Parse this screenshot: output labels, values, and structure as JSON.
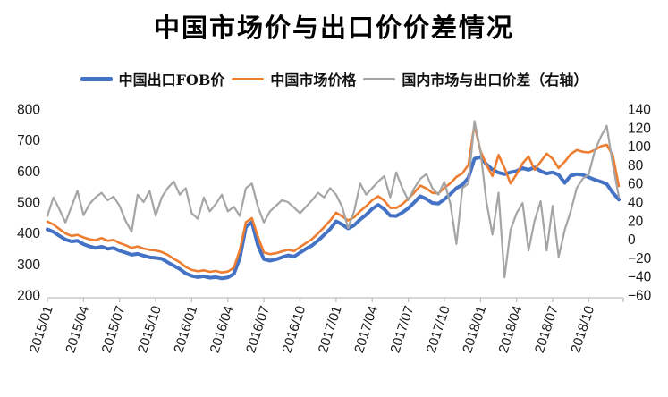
{
  "page": {
    "title": "中国市场价与出口价价差情况"
  },
  "legend": {
    "items": [
      {
        "label": "中国出口FOB价",
        "color": "#4472C4"
      },
      {
        "label": "中国市场价格",
        "color": "#ED7D31"
      },
      {
        "label": "国内市场与出口价差（右轴）",
        "color": "#A5A5A5"
      }
    ]
  },
  "chart_data": {
    "type": "line",
    "title": "中国市场价与出口价价差情况",
    "grid": false,
    "legend_position": "top",
    "axis_color": "#BFBFBF",
    "x_labels": [
      "2015/01",
      "2015/04",
      "2015/07",
      "2015/10",
      "2016/01",
      "2016/04",
      "2016/07",
      "2016/10",
      "2017/01",
      "2017/04",
      "2017/07",
      "2017/10",
      "2018/01",
      "2018/04",
      "2018/07",
      "2018/10"
    ],
    "x_tick_step_points": 6,
    "x_resolution": "biweekly, 2015/01 through 2018/12",
    "left_axis": {
      "ticks": [
        800,
        700,
        600,
        500,
        400,
        300,
        200
      ],
      "min": 200,
      "max": 800
    },
    "right_axis": {
      "ticks": [
        140,
        120,
        100,
        80,
        60,
        40,
        20,
        0,
        -20,
        -40,
        -60
      ],
      "min": -60,
      "max": 140
    },
    "series": [
      {
        "name": "中国出口FOB价",
        "axis": "left",
        "color": "#4472C4",
        "stroke_width": 4,
        "values": [
          412,
          404,
          391,
          379,
          373,
          375,
          364,
          357,
          352,
          356,
          349,
          352,
          343,
          337,
          330,
          333,
          327,
          322,
          320,
          317,
          306,
          295,
          284,
          270,
          262,
          258,
          261,
          256,
          258,
          254,
          257,
          268,
          320,
          420,
          435,
          360,
          316,
          311,
          315,
          322,
          328,
          324,
          337,
          349,
          360,
          376,
          394,
          413,
          438,
          428,
          415,
          425,
          444,
          459,
          478,
          491,
          477,
          456,
          455,
          466,
          480,
          499,
          519,
          510,
          497,
          495,
          509,
          526,
          545,
          556,
          578,
          640,
          645,
          622,
          605,
          595,
          590,
          596,
          600,
          610,
          604,
          612,
          600,
          592,
          596,
          588,
          562,
          585,
          590,
          588,
          580,
          572,
          566,
          558,
          530,
          508
        ]
      },
      {
        "name": "中国市场价格",
        "axis": "left",
        "color": "#ED7D31",
        "stroke_width": 2.6,
        "values": [
          437,
          428,
          413,
          399,
          391,
          394,
          386,
          380,
          377,
          384,
          375,
          378,
          368,
          361,
          352,
          357,
          350,
          346,
          344,
          339,
          330,
          317,
          306,
          291,
          281,
          277,
          280,
          275,
          278,
          273,
          276,
          288,
          345,
          435,
          448,
          388,
          338,
          332,
          335,
          341,
          346,
          342,
          355,
          368,
          381,
          399,
          419,
          440,
          466,
          454,
          441,
          451,
          471,
          487,
          506,
          519,
          505,
          481,
          481,
          493,
          511,
          531,
          553,
          544,
          530,
          528,
          546,
          561,
          581,
          593,
          620,
          750,
          665,
          620,
          584,
          652,
          610,
          560,
          590,
          625,
          647,
          604,
          630,
          656,
          640,
          610,
          630,
          655,
          668,
          662,
          660,
          668,
          680,
          685,
          650,
          552
        ]
      },
      {
        "name": "国内市场与出口价差（右轴）",
        "axis": "right",
        "color": "#A5A5A5",
        "stroke_width": 2.2,
        "values": [
          25,
          45,
          32,
          18,
          35,
          52,
          26,
          38,
          45,
          50,
          42,
          46,
          36,
          20,
          8,
          48,
          40,
          52,
          25,
          45,
          55,
          62,
          48,
          55,
          28,
          22,
          45,
          30,
          38,
          48,
          30,
          35,
          25,
          55,
          60,
          35,
          18,
          30,
          36,
          42,
          40,
          34,
          28,
          35,
          42,
          50,
          45,
          55,
          48,
          35,
          12,
          30,
          60,
          48,
          55,
          62,
          68,
          45,
          72,
          55,
          42,
          55,
          65,
          70,
          55,
          48,
          62,
          38,
          -5,
          55,
          60,
          127,
          95,
          40,
          5,
          50,
          -41,
          10,
          28,
          39,
          -12,
          20,
          41,
          -12,
          36,
          -19,
          10,
          30,
          55,
          65,
          70,
          95,
          110,
          122,
          80,
          46
        ]
      }
    ]
  }
}
